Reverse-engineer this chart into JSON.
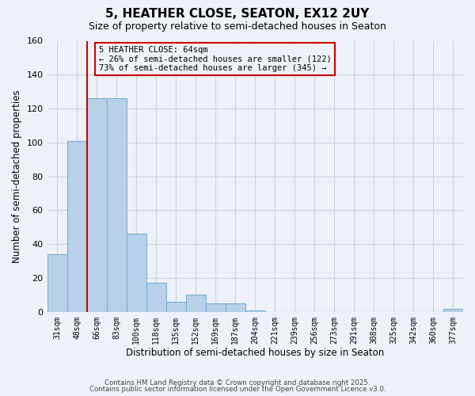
{
  "title": "5, HEATHER CLOSE, SEATON, EX12 2UY",
  "subtitle": "Size of property relative to semi-detached houses in Seaton",
  "xlabel": "Distribution of semi-detached houses by size in Seaton",
  "ylabel": "Number of semi-detached properties",
  "bin_labels": [
    "31sqm",
    "48sqm",
    "66sqm",
    "83sqm",
    "100sqm",
    "118sqm",
    "135sqm",
    "152sqm",
    "169sqm",
    "187sqm",
    "204sqm",
    "221sqm",
    "239sqm",
    "256sqm",
    "273sqm",
    "291sqm",
    "308sqm",
    "325sqm",
    "342sqm",
    "360sqm",
    "377sqm"
  ],
  "bar_heights": [
    34,
    101,
    126,
    126,
    46,
    17,
    6,
    10,
    5,
    5,
    1,
    0,
    0,
    0,
    0,
    0,
    0,
    0,
    0,
    0,
    2
  ],
  "bar_color": "#b8d0e8",
  "bar_edge_color": "#7aafd4",
  "marker_line_color": "#cc0000",
  "annotation_box_color": "#cc0000",
  "ylim": [
    0,
    160
  ],
  "yticks": [
    0,
    20,
    40,
    60,
    80,
    100,
    120,
    140,
    160
  ],
  "grid_color": "#c8d4e4",
  "bg_color": "#eef2f8",
  "footer1": "Contains HM Land Registry data © Crown copyright and database right 2025.",
  "footer2": "Contains public sector information licensed under the Open Government Licence v3.0."
}
